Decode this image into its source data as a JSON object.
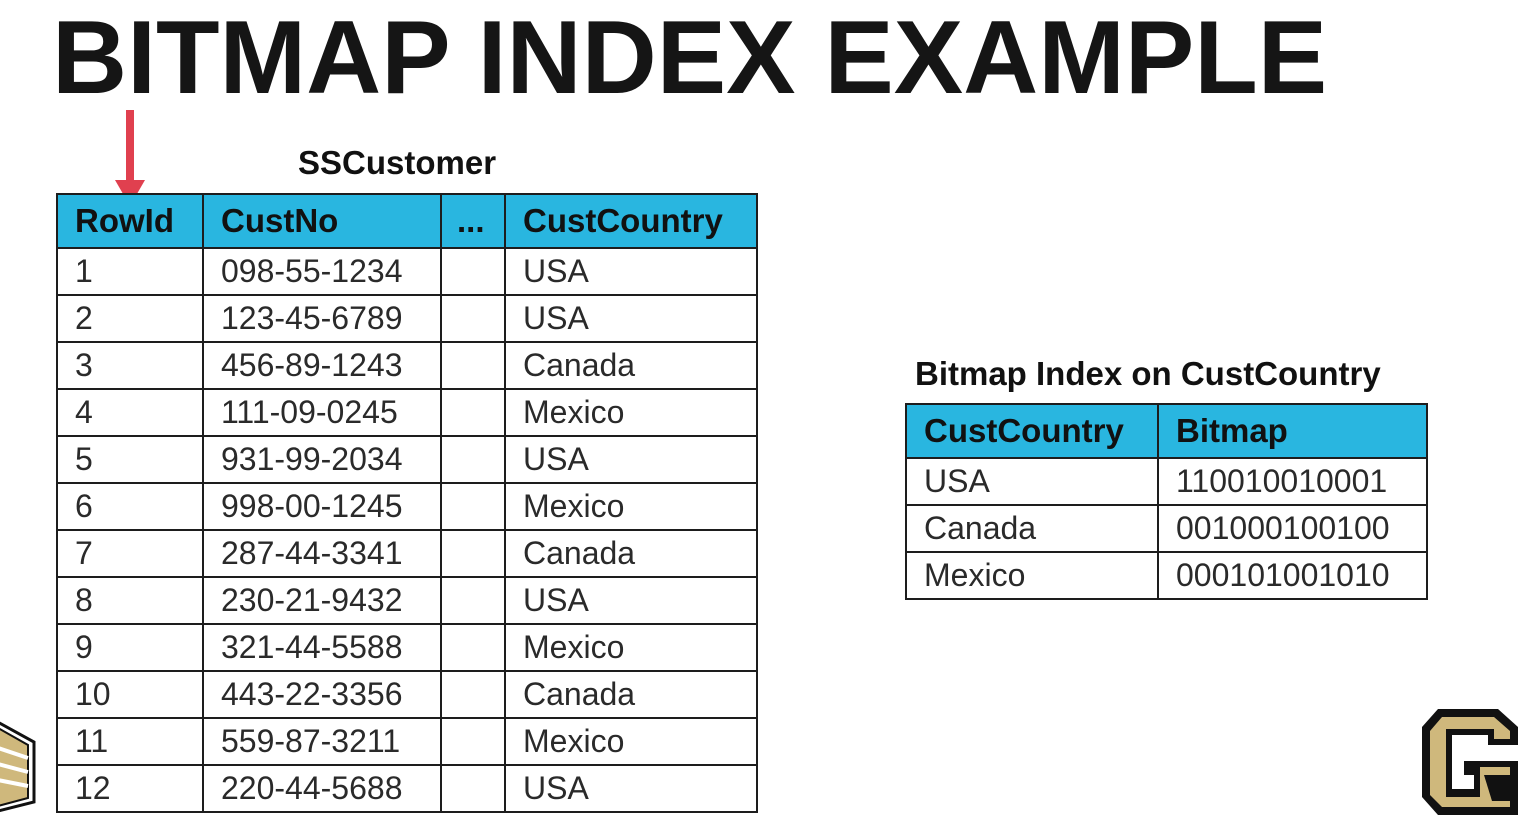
{
  "title": "BITMAP INDEX EXAMPLE",
  "customer_table": {
    "caption": "SSCustomer",
    "columns": [
      "RowId",
      "CustNo",
      "...",
      "CustCountry"
    ],
    "rows": [
      [
        "1",
        "098-55-1234",
        "",
        "USA"
      ],
      [
        "2",
        "123-45-6789",
        "",
        "USA"
      ],
      [
        "3",
        "456-89-1243",
        "",
        "Canada"
      ],
      [
        "4",
        "111-09-0245",
        "",
        "Mexico"
      ],
      [
        "5",
        "931-99-2034",
        "",
        "USA"
      ],
      [
        "6",
        "998-00-1245",
        "",
        "Mexico"
      ],
      [
        "7",
        "287-44-3341",
        "",
        "Canada"
      ],
      [
        "8",
        "230-21-9432",
        "",
        "USA"
      ],
      [
        "9",
        "321-44-5588",
        "",
        "Mexico"
      ],
      [
        "10",
        "443-22-3356",
        "",
        "Canada"
      ],
      [
        "11",
        "559-87-3211",
        "",
        "Mexico"
      ],
      [
        "12",
        "220-44-5688",
        "",
        "USA"
      ]
    ]
  },
  "bitmap_table": {
    "caption": "Bitmap Index on CustCountry",
    "columns": [
      "CustCountry",
      "Bitmap"
    ],
    "rows": [
      [
        "USA",
        "110010010001"
      ],
      [
        "Canada",
        "001000100100"
      ],
      [
        "Mexico",
        "000101001010"
      ]
    ]
  },
  "colors": {
    "header_fill": "#29b6e0",
    "arrow": "#e0404f",
    "logo_gold": "#cfb87c",
    "logo_black": "#111111"
  },
  "icons": {
    "arrow": "down-arrow-icon",
    "logo_left": "stacked-logo-icon",
    "logo_right": "cu-logo-icon"
  }
}
